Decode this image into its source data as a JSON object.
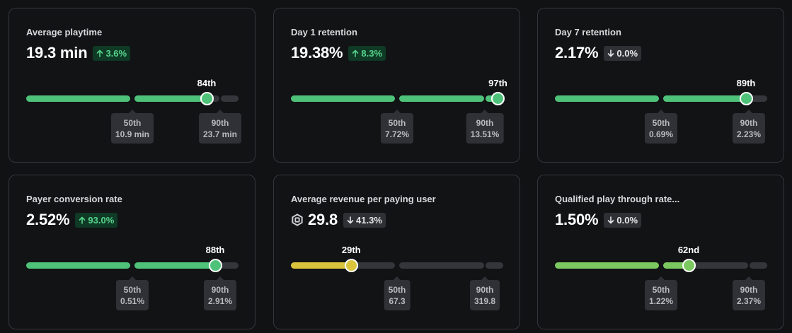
{
  "colors": {
    "green": "#4fc27a",
    "light_green": "#7cc860",
    "yellow": "#d9c43c",
    "empty": "#34363b"
  },
  "cards": [
    {
      "title": "Average playtime",
      "value": "19.3 min",
      "delta": "3.6%",
      "delta_direction": "up",
      "rank": "84th",
      "percentile": 84,
      "benchmarks": [
        {
          "label": "50th",
          "value": "10.9 min"
        },
        {
          "label": "90th",
          "value": "23.7 min"
        }
      ]
    },
    {
      "title": "Day 1 retention",
      "value": "19.38%",
      "delta": "8.3%",
      "delta_direction": "up",
      "rank": "97th",
      "percentile": 97,
      "benchmarks": [
        {
          "label": "50th",
          "value": "7.72%"
        },
        {
          "label": "90th",
          "value": "13.51%"
        }
      ]
    },
    {
      "title": "Day 7 retention",
      "value": "2.17%",
      "delta": "0.0%",
      "delta_direction": "down",
      "rank": "89th",
      "percentile": 89,
      "benchmarks": [
        {
          "label": "50th",
          "value": "0.69%"
        },
        {
          "label": "90th",
          "value": "2.23%"
        }
      ]
    },
    {
      "title": "Payer conversion rate",
      "value": "2.52%",
      "delta": "93.0%",
      "delta_direction": "up",
      "rank": "88th",
      "percentile": 88,
      "benchmarks": [
        {
          "label": "50th",
          "value": "0.51%"
        },
        {
          "label": "90th",
          "value": "2.91%"
        }
      ]
    },
    {
      "title": "Average revenue per paying user",
      "value": "29.8",
      "currency_icon": "robux-icon",
      "delta": "41.3%",
      "delta_direction": "down",
      "rank": "29th",
      "percentile": 29,
      "benchmarks": [
        {
          "label": "50th",
          "value": "67.3"
        },
        {
          "label": "90th",
          "value": "319.8"
        }
      ]
    },
    {
      "title": "Qualified play through rate...",
      "value": "1.50%",
      "delta": "0.0%",
      "delta_direction": "down",
      "rank": "62nd",
      "percentile": 62,
      "benchmarks": [
        {
          "label": "50th",
          "value": "1.22%"
        },
        {
          "label": "90th",
          "value": "2.37%"
        }
      ]
    }
  ]
}
